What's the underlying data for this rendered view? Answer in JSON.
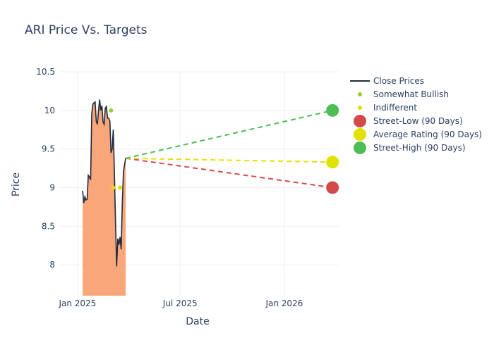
{
  "chart_data": {
    "type": "line",
    "title": "ARI Price Vs. Targets",
    "xlabel": "Date",
    "ylabel": "Price",
    "x_range": [
      "2024-12-01",
      "2026-04-07"
    ],
    "ylim": [
      7.6,
      10.5
    ],
    "y_ticks": [
      8,
      8.5,
      9,
      9.5,
      10,
      10.5
    ],
    "y_tick_labels": [
      "8",
      "8.5",
      "9",
      "9.5",
      "10",
      "10.5"
    ],
    "x_ticks": [
      "2025-01-01",
      "2025-07-01",
      "2026-01-01"
    ],
    "x_tick_labels": [
      "Jan 2025",
      "Jul 2025",
      "Jan 2026"
    ],
    "grid": true,
    "legend_position": "right",
    "colors": {
      "close": "#1f2a3c",
      "fill": "#f9a77a",
      "somewhat_bullish": "#9acd32",
      "indifferent": "#e6d800",
      "street_low": "#d44a4a",
      "average": "#e2e200",
      "street_high": "#4cbe55"
    },
    "close_prices": [
      [
        "2025-01-10",
        8.96
      ],
      [
        "2025-01-12",
        8.8
      ],
      [
        "2025-01-14",
        8.88
      ],
      [
        "2025-01-16",
        8.84
      ],
      [
        "2025-01-18",
        8.85
      ],
      [
        "2025-01-20",
        9.16
      ],
      [
        "2025-01-22",
        9.14
      ],
      [
        "2025-01-24",
        9.1
      ],
      [
        "2025-01-26",
        9.95
      ],
      [
        "2025-01-28",
        10.08
      ],
      [
        "2025-01-30",
        10.1
      ],
      [
        "2025-02-01",
        10.11
      ],
      [
        "2025-02-03",
        9.86
      ],
      [
        "2025-02-05",
        9.82
      ],
      [
        "2025-02-07",
        10.0
      ],
      [
        "2025-02-09",
        10.14
      ],
      [
        "2025-02-11",
        10.0
      ],
      [
        "2025-02-13",
        10.06
      ],
      [
        "2025-02-15",
        9.85
      ],
      [
        "2025-02-17",
        9.82
      ],
      [
        "2025-02-19",
        10.03
      ],
      [
        "2025-02-21",
        10.05
      ],
      [
        "2025-02-23",
        9.9
      ],
      [
        "2025-02-25",
        9.9
      ],
      [
        "2025-02-27",
        9.86
      ],
      [
        "2025-03-01",
        9.45
      ],
      [
        "2025-03-03",
        9.5
      ],
      [
        "2025-03-05",
        9.75
      ],
      [
        "2025-03-07",
        9.2
      ],
      [
        "2025-03-09",
        8.55
      ],
      [
        "2025-03-11",
        7.98
      ],
      [
        "2025-03-13",
        8.34
      ],
      [
        "2025-03-15",
        8.26
      ],
      [
        "2025-03-17",
        8.36
      ],
      [
        "2025-03-19",
        8.2
      ],
      [
        "2025-03-21",
        8.8
      ],
      [
        "2025-03-23",
        9.2
      ],
      [
        "2025-03-25",
        9.3
      ],
      [
        "2025-03-27",
        9.38
      ]
    ],
    "series": [
      {
        "name": "Close Prices"
      },
      {
        "name": "Somewhat Bullish",
        "points": [
          [
            "2025-03-01",
            10.0
          ]
        ]
      },
      {
        "name": "Indifferent",
        "points": [
          [
            "2025-03-05",
            9.0
          ],
          [
            "2025-03-17",
            9.0
          ]
        ]
      },
      {
        "name": "Street-Low (90 Days)",
        "points": [
          [
            "2025-03-27",
            9.38
          ],
          [
            "2026-03-27",
            9.0
          ]
        ]
      },
      {
        "name": "Average Rating (90 Days)",
        "points": [
          [
            "2025-03-27",
            9.38
          ],
          [
            "2026-03-27",
            9.33
          ]
        ]
      },
      {
        "name": "Street-High (90 Days)",
        "points": [
          [
            "2025-03-27",
            9.38
          ],
          [
            "2026-03-27",
            10.0
          ]
        ]
      }
    ]
  }
}
